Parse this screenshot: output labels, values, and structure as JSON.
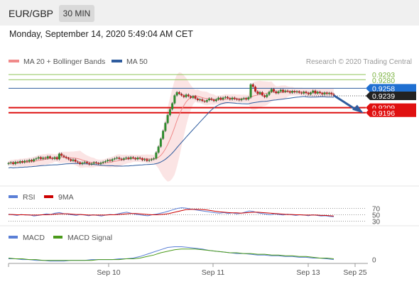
{
  "header": {
    "symbol": "EUR/GBP",
    "timeframe": "30 MIN",
    "datetime": "Monday, September 14, 2020 5:49:04 AM CET"
  },
  "colors": {
    "ma20": "#f08a8a",
    "ma50": "#2f5c9e",
    "rsi": "#5a7fd6",
    "ma9": "#cc0000",
    "macd": "#5a7fd6",
    "macd_signal": "#4a9a1a",
    "bands": "#fadbdb",
    "resistance": "#8fc45a",
    "support": "#dd1111",
    "candle_up": "#2e8b2e",
    "candle_down": "#c02020"
  },
  "chart_data": [
    {
      "type": "candlestick",
      "legend": [
        {
          "label": "MA 20 + Bollinger Bands",
          "color": "#f08a8a"
        },
        {
          "label": "MA 50",
          "color": "#2f5c9e"
        }
      ],
      "credit": "Research © 2020 Trading Central",
      "ylim": [
        0.901,
        0.932
      ],
      "x_ticks": [
        "Sep 10",
        "Sep 11",
        "Sep 13",
        "Sep 25"
      ],
      "close": [
        0.9068,
        0.907,
        0.9066,
        0.9071,
        0.9069,
        0.9073,
        0.907,
        0.9074,
        0.9072,
        0.9076,
        0.9073,
        0.9078,
        0.908,
        0.9083,
        0.9079,
        0.9082,
        0.908,
        0.9085,
        0.9081,
        0.9079,
        0.9083,
        0.9078,
        0.9092,
        0.9087,
        0.9084,
        0.9081,
        0.9078,
        0.9074,
        0.9077,
        0.9072,
        0.907,
        0.9066,
        0.9069,
        0.9071,
        0.9068,
        0.9065,
        0.9067,
        0.907,
        0.9068,
        0.9066,
        0.9069,
        0.9071,
        0.9073,
        0.9076,
        0.9074,
        0.9078,
        0.908,
        0.9082,
        0.9079,
        0.9077,
        0.908,
        0.9082,
        0.9079,
        0.9083,
        0.9081,
        0.9078,
        0.9082,
        0.908,
        0.9076,
        0.9078,
        0.9074,
        0.9076,
        0.9078,
        0.908,
        0.9095,
        0.911,
        0.913,
        0.915,
        0.917,
        0.919,
        0.9205,
        0.922,
        0.924,
        0.9248,
        0.9244,
        0.924,
        0.9236,
        0.9242,
        0.9238,
        0.9234,
        0.9238,
        0.9232,
        0.9228,
        0.923,
        0.9226,
        0.9224,
        0.9228,
        0.9232,
        0.9229,
        0.9226,
        0.923,
        0.9234,
        0.923,
        0.9234,
        0.9236,
        0.9233,
        0.923,
        0.9234,
        0.9231,
        0.923,
        0.9228,
        0.9231,
        0.9233,
        0.923,
        0.9235,
        0.9268,
        0.9262,
        0.925,
        0.9244,
        0.9248,
        0.924,
        0.9236,
        0.9242,
        0.9249,
        0.9256,
        0.925,
        0.9246,
        0.925,
        0.9254,
        0.9249,
        0.9252,
        0.925,
        0.9247,
        0.9251,
        0.9248,
        0.925,
        0.9247,
        0.9245,
        0.9249,
        0.9246,
        0.9243,
        0.9247,
        0.9252,
        0.9245,
        0.9249,
        0.9246,
        0.9243,
        0.9247,
        0.9244,
        0.9246,
        0.9243,
        0.924
      ],
      "price_levels": [
        {
          "value": 0.9293,
          "label": "0.9293",
          "kind": "resistance"
        },
        {
          "value": 0.928,
          "label": "0.9280",
          "kind": "resistance"
        },
        {
          "value": 0.9258,
          "label": "0.9258",
          "kind": "ma50"
        },
        {
          "value": 0.9239,
          "label": "0.9239",
          "kind": "last"
        },
        {
          "value": 0.9209,
          "label": "0.9209",
          "kind": "support"
        },
        {
          "value": 0.9196,
          "label": "0.9196",
          "kind": "support"
        }
      ],
      "forecast": {
        "from": 0.924,
        "to": 0.92
      }
    },
    {
      "type": "line",
      "legend": [
        {
          "label": "RSI",
          "color": "#5a7fd6"
        },
        {
          "label": "9MA",
          "color": "#cc0000"
        }
      ],
      "ylim": [
        20,
        80
      ],
      "levels": [
        {
          "value": 70,
          "label": "70"
        },
        {
          "value": 50,
          "label": "50"
        },
        {
          "value": 30,
          "label": "30"
        }
      ],
      "series": [
        {
          "name": "RSI",
          "values": [
            52,
            50,
            48,
            51,
            49,
            50,
            46,
            48,
            50,
            53,
            51,
            55,
            57,
            54,
            52,
            50,
            48,
            51,
            49,
            47,
            50,
            48,
            46,
            49,
            51,
            50,
            53,
            56,
            58,
            55,
            52,
            50,
            48,
            47,
            50,
            52,
            55,
            58,
            62,
            66,
            70,
            72,
            71,
            68,
            66,
            64,
            62,
            60,
            58,
            56,
            55,
            57,
            54,
            56,
            53,
            55,
            58,
            62,
            60,
            56,
            54,
            52,
            50,
            53,
            51,
            49,
            52,
            50,
            48,
            50,
            49,
            47,
            50,
            48,
            46,
            47,
            45,
            44
          ]
        },
        {
          "name": "9MA",
          "values": [
            51,
            51,
            50,
            50,
            50,
            49,
            49,
            49,
            50,
            50,
            51,
            52,
            53,
            53,
            53,
            52,
            51,
            51,
            50,
            49,
            49,
            49,
            49,
            49,
            50,
            50,
            51,
            52,
            53,
            54,
            54,
            53,
            52,
            51,
            50,
            50,
            51,
            52,
            54,
            57,
            60,
            63,
            66,
            67,
            67,
            67,
            66,
            65,
            63,
            61,
            59,
            58,
            57,
            56,
            56,
            55,
            56,
            57,
            58,
            58,
            57,
            56,
            55,
            54,
            53,
            52,
            51,
            51,
            50,
            50,
            49,
            49,
            49,
            49,
            48,
            48,
            47,
            46
          ]
        }
      ]
    },
    {
      "type": "line",
      "legend": [
        {
          "label": "MACD",
          "color": "#5a7fd6"
        },
        {
          "label": "MACD Signal",
          "color": "#4a9a1a"
        }
      ],
      "ylim": [
        -0.0006,
        0.0024
      ],
      "levels": [
        {
          "value": 0,
          "label": "0"
        }
      ],
      "series": [
        {
          "name": "MACD",
          "values": [
            0.0001,
            0.0001,
            0.0,
            0.0,
            -0.0001,
            -0.0001,
            -0.0002,
            -0.0002,
            -0.0002,
            -0.0001,
            -0.0001,
            -0.0001,
            0.0,
            0.0,
            0.0,
            0.0,
            0.0001,
            0.0001,
            0.0002,
            0.0004,
            0.0007,
            0.001,
            0.0013,
            0.0016,
            0.0017,
            0.0017,
            0.0016,
            0.0015,
            0.0014,
            0.0012,
            0.0011,
            0.001,
            0.0009,
            0.0008,
            0.0008,
            0.0007,
            0.0006,
            0.0006,
            0.0005,
            0.0005,
            0.0004,
            0.0004,
            0.0003,
            0.0003,
            0.0002,
            0.0002,
            0.0001,
            0.0
          ]
        },
        {
          "name": "MACD Signal",
          "values": [
            0.0002,
            0.0001,
            0.0001,
            0.0,
            0.0,
            -0.0001,
            -0.0001,
            -0.0001,
            -0.0001,
            -0.0001,
            -0.0001,
            -0.0001,
            -0.0001,
            0.0,
            0.0,
            0.0,
            0.0,
            0.0001,
            0.0001,
            0.0002,
            0.0004,
            0.0006,
            0.0009,
            0.0011,
            0.0013,
            0.0014,
            0.0014,
            0.0014,
            0.0013,
            0.0012,
            0.0011,
            0.001,
            0.0009,
            0.0009,
            0.0008,
            0.0008,
            0.0007,
            0.0007,
            0.0006,
            0.0006,
            0.0005,
            0.0005,
            0.0004,
            0.0004,
            0.0003,
            0.0002,
            0.0002,
            0.0001
          ]
        }
      ]
    }
  ]
}
